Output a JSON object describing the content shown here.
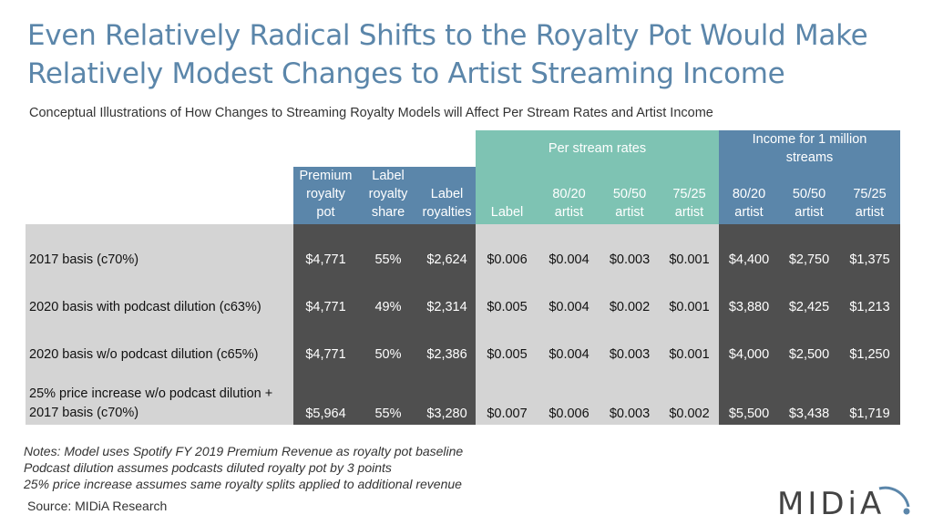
{
  "title": {
    "line1": "Even Relatively Radical Shifts to the Royalty Pot Would Make",
    "line2": "Relatively Modest Changes to Artist Streaming Income"
  },
  "subtitle": "Conceptual Illustrations of How Changes to Streaming Royalty Models will Affect Per Stream Rates and Artist Income",
  "table": {
    "group_headers": {
      "per_stream": "Per stream rates",
      "income": "Income for 1 million streams"
    },
    "columns": [
      "Premium royalty pot",
      "Label royalty share",
      "Label royalties",
      "Label",
      "80/20 artist",
      "50/50 artist",
      "75/25 artist",
      "80/20 artist",
      "50/50 artist",
      "75/25 artist"
    ],
    "rows": [
      {
        "label": "2017 basis (c70%)",
        "values": [
          "$4,771",
          "55%",
          "$2,624",
          "$0.006",
          "$0.004",
          "$0.003",
          "$0.001",
          "$4,400",
          "$2,750",
          "$1,375"
        ]
      },
      {
        "label": "2020 basis with podcast dilution (c63%)",
        "values": [
          "$4,771",
          "49%",
          "$2,314",
          "$0.005",
          "$0.004",
          "$0.002",
          "$0.001",
          "$3,880",
          "$2,425",
          "$1,213"
        ]
      },
      {
        "label": "2020 basis w/o podcast dilution (c65%)",
        "values": [
          "$4,771",
          "50%",
          "$2,386",
          "$0.005",
          "$0.004",
          "$0.003",
          "$0.001",
          "$4,000",
          "$2,500",
          "$1,250"
        ]
      },
      {
        "label": "25% price increase w/o podcast dilution + 2017 basis (c70%)",
        "values": [
          "$5,964",
          "55%",
          "$3,280",
          "$0.007",
          "$0.006",
          "$0.003",
          "$0.002",
          "$5,500",
          "$3,438",
          "$1,719"
        ]
      }
    ]
  },
  "notes": [
    "Notes: Model uses Spotify FY 2019 Premium Revenue as royalty pot baseline",
    "Podcast dilution assumes podcasts diluted royalty pot by 3 points",
    "25% price increase assumes same royalty splits applied to additional revenue"
  ],
  "source": "Source: MIDiA Research",
  "logo": {
    "text": "MIDiA",
    "color": "#444444",
    "accent": "#5b86aa"
  },
  "colors": {
    "title": "#5b86aa",
    "header_blue": "#5b86aa",
    "header_teal": "#7ec3b3",
    "cell_dark": "#4f4f4f",
    "cell_light": "#d4d4d4"
  }
}
